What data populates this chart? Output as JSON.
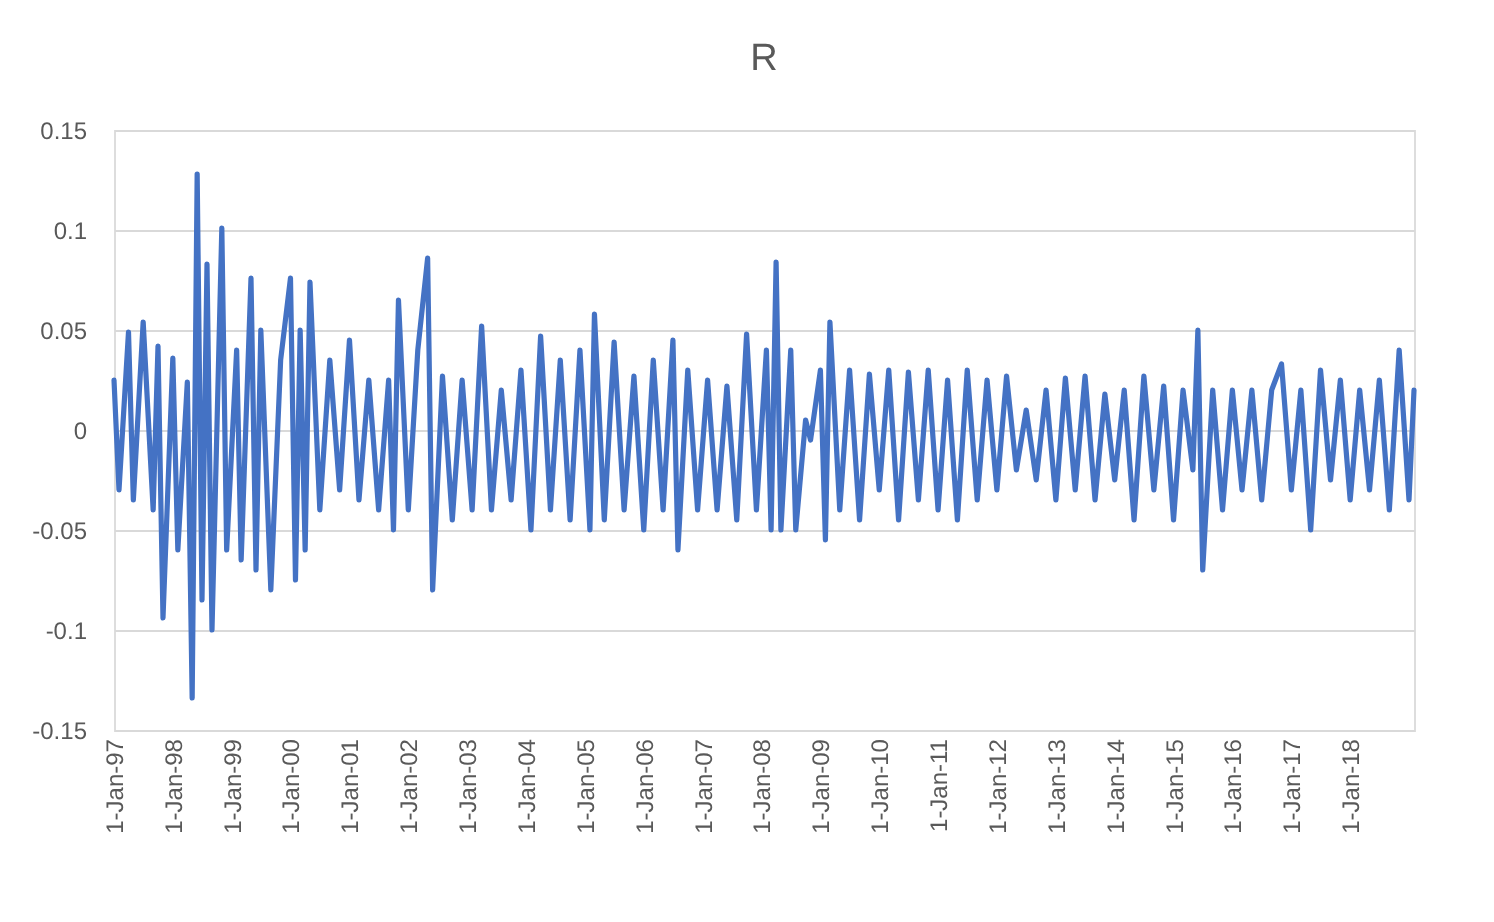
{
  "chart_data": {
    "type": "line",
    "title": "R",
    "x": [
      "1997-01",
      "1997-02",
      "1997-04",
      "1997-05",
      "1997-07",
      "1997-09",
      "1997-10",
      "1997-11",
      "1998-01",
      "1998-02",
      "1998-04",
      "1998-05",
      "1998-06",
      "1998-07",
      "1998-08",
      "1998-09",
      "1998-11",
      "1998-12",
      "1999-02",
      "1999-03",
      "1999-05",
      "1999-06",
      "1999-07",
      "1999-09",
      "1999-11",
      "2000-01",
      "2000-02",
      "2000-03",
      "2000-04",
      "2000-05",
      "2000-07",
      "2000-09",
      "2000-11",
      "2001-01",
      "2001-03",
      "2001-05",
      "2001-07",
      "2001-09",
      "2001-10",
      "2001-11",
      "2002-01",
      "2002-03",
      "2002-05",
      "2002-06",
      "2002-08",
      "2002-10",
      "2002-12",
      "2003-02",
      "2003-04",
      "2003-06",
      "2003-08",
      "2003-10",
      "2003-12",
      "2004-02",
      "2004-04",
      "2004-06",
      "2004-08",
      "2004-10",
      "2004-12",
      "2005-02",
      "2005-03",
      "2005-05",
      "2005-07",
      "2005-09",
      "2005-11",
      "2006-01",
      "2006-03",
      "2006-05",
      "2006-07",
      "2006-08",
      "2006-10",
      "2006-12",
      "2007-02",
      "2007-04",
      "2007-06",
      "2007-08",
      "2007-10",
      "2007-12",
      "2008-02",
      "2008-03",
      "2008-04",
      "2008-05",
      "2008-07",
      "2008-08",
      "2008-10",
      "2008-11",
      "2009-01",
      "2009-02",
      "2009-03",
      "2009-05",
      "2009-07",
      "2009-09",
      "2009-11",
      "2010-01",
      "2010-03",
      "2010-05",
      "2010-07",
      "2010-09",
      "2010-11",
      "2011-01",
      "2011-03",
      "2011-05",
      "2011-07",
      "2011-09",
      "2011-11",
      "2012-01",
      "2012-03",
      "2012-05",
      "2012-07",
      "2012-09",
      "2012-11",
      "2013-01",
      "2013-03",
      "2013-05",
      "2013-07",
      "2013-09",
      "2013-11",
      "2014-01",
      "2014-03",
      "2014-05",
      "2014-07",
      "2014-09",
      "2014-11",
      "2015-01",
      "2015-03",
      "2015-05",
      "2015-06",
      "2015-07",
      "2015-09",
      "2015-11",
      "2016-01",
      "2016-03",
      "2016-05",
      "2016-07",
      "2016-09",
      "2016-11",
      "2017-01",
      "2017-03",
      "2017-05",
      "2017-07",
      "2017-09",
      "2017-11",
      "2018-01",
      "2018-03",
      "2018-05",
      "2018-07",
      "2018-09",
      "2018-11",
      "2019-01",
      "2019-02"
    ],
    "series": [
      {
        "color": "#4472c4",
        "values": [
          0.025,
          -0.03,
          0.049,
          -0.035,
          0.054,
          -0.04,
          0.042,
          -0.094,
          0.036,
          -0.06,
          0.024,
          -0.134,
          0.128,
          -0.085,
          0.083,
          -0.1,
          0.101,
          -0.06,
          0.04,
          -0.065,
          0.076,
          -0.07,
          0.05,
          -0.08,
          0.035,
          0.076,
          -0.075,
          0.05,
          -0.06,
          0.074,
          -0.04,
          0.035,
          -0.03,
          0.045,
          -0.035,
          0.025,
          -0.04,
          0.025,
          -0.05,
          0.065,
          -0.04,
          0.04,
          0.086,
          -0.08,
          0.027,
          -0.045,
          0.025,
          -0.04,
          0.052,
          -0.04,
          0.02,
          -0.035,
          0.03,
          -0.05,
          0.047,
          -0.04,
          0.035,
          -0.045,
          0.04,
          -0.05,
          0.058,
          -0.045,
          0.044,
          -0.04,
          0.027,
          -0.05,
          0.035,
          -0.04,
          0.045,
          -0.06,
          0.03,
          -0.04,
          0.025,
          -0.04,
          0.022,
          -0.045,
          0.048,
          -0.04,
          0.04,
          -0.05,
          0.084,
          -0.05,
          0.04,
          -0.05,
          0.005,
          -0.005,
          0.03,
          -0.055,
          0.054,
          -0.04,
          0.03,
          -0.045,
          0.028,
          -0.03,
          0.03,
          -0.045,
          0.029,
          -0.035,
          0.03,
          -0.04,
          0.025,
          -0.045,
          0.03,
          -0.035,
          0.025,
          -0.03,
          0.027,
          -0.02,
          0.01,
          -0.025,
          0.02,
          -0.035,
          0.026,
          -0.03,
          0.027,
          -0.035,
          0.018,
          -0.025,
          0.02,
          -0.045,
          0.027,
          -0.03,
          0.022,
          -0.045,
          0.02,
          -0.02,
          0.05,
          -0.07,
          0.02,
          -0.04,
          0.02,
          -0.03,
          0.02,
          -0.035,
          0.02,
          0.033,
          -0.03,
          0.02,
          -0.05,
          0.03,
          -0.025,
          0.025,
          -0.035,
          0.02,
          -0.03,
          0.025,
          -0.04,
          0.04,
          -0.035,
          0.02
        ]
      }
    ],
    "xlim": [
      "1997-01",
      "2019-02"
    ],
    "xticks": [
      {
        "value": "1997-01-01",
        "label": "1-Jan-97"
      },
      {
        "value": "1998-01-01",
        "label": "1-Jan-98"
      },
      {
        "value": "1999-01-01",
        "label": "1-Jan-99"
      },
      {
        "value": "2000-01-01",
        "label": "1-Jan-00"
      },
      {
        "value": "2001-01-01",
        "label": "1-Jan-01"
      },
      {
        "value": "2002-01-01",
        "label": "1-Jan-02"
      },
      {
        "value": "2003-01-01",
        "label": "1-Jan-03"
      },
      {
        "value": "2004-01-01",
        "label": "1-Jan-04"
      },
      {
        "value": "2005-01-01",
        "label": "1-Jan-05"
      },
      {
        "value": "2006-01-01",
        "label": "1-Jan-06"
      },
      {
        "value": "2007-01-01",
        "label": "1-Jan-07"
      },
      {
        "value": "2008-01-01",
        "label": "1-Jan-08"
      },
      {
        "value": "2009-01-01",
        "label": "1-Jan-09"
      },
      {
        "value": "2010-01-01",
        "label": "1-Jan-10"
      },
      {
        "value": "2011-01-01",
        "label": "1-Jan-11"
      },
      {
        "value": "2012-01-01",
        "label": "1-Jan-12"
      },
      {
        "value": "2013-01-01",
        "label": "1-Jan-13"
      },
      {
        "value": "2014-01-01",
        "label": "1-Jan-14"
      },
      {
        "value": "2015-01-01",
        "label": "1-Jan-15"
      },
      {
        "value": "2016-01-01",
        "label": "1-Jan-16"
      },
      {
        "value": "2017-01-01",
        "label": "1-Jan-17"
      },
      {
        "value": "2018-01-01",
        "label": "1-Jan-18"
      }
    ],
    "ylim": [
      -0.15,
      0.15
    ],
    "yticks": [
      -0.15,
      -0.1,
      -0.05,
      0,
      0.05,
      0.1,
      0.15
    ],
    "grid": "y",
    "marker": "none",
    "line_style": "solid"
  }
}
